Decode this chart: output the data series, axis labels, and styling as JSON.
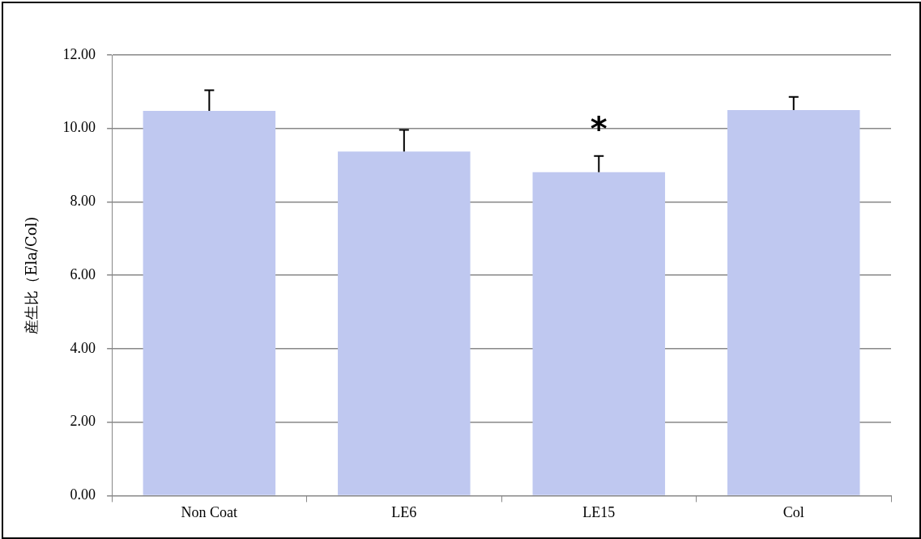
{
  "chart_data": {
    "type": "bar",
    "ylabel": "産生比（Ela/Col)",
    "categories": [
      "Non Coat",
      "LE6",
      "LE15",
      "Col"
    ],
    "values": [
      10.48,
      9.37,
      8.81,
      10.5
    ],
    "color": "#bfc8f0",
    "errors": [
      [
        10.48,
        11.04
      ],
      [
        9.37,
        9.96
      ],
      [
        8.81,
        9.25
      ],
      [
        10.5,
        10.86
      ]
    ],
    "ylim": [
      0,
      12
    ],
    "yticks": [
      {
        "value": 0,
        "label": "0.00"
      },
      {
        "value": 2,
        "label": "2.00"
      },
      {
        "value": 4,
        "label": "4.00"
      },
      {
        "value": 6,
        "label": "6.00"
      },
      {
        "value": 8,
        "label": "8.00"
      },
      {
        "value": 10,
        "label": "10.00"
      },
      {
        "value": 12,
        "label": "12.00"
      }
    ],
    "grid": "y",
    "legend": false,
    "annotations": [
      "*"
    ]
  }
}
